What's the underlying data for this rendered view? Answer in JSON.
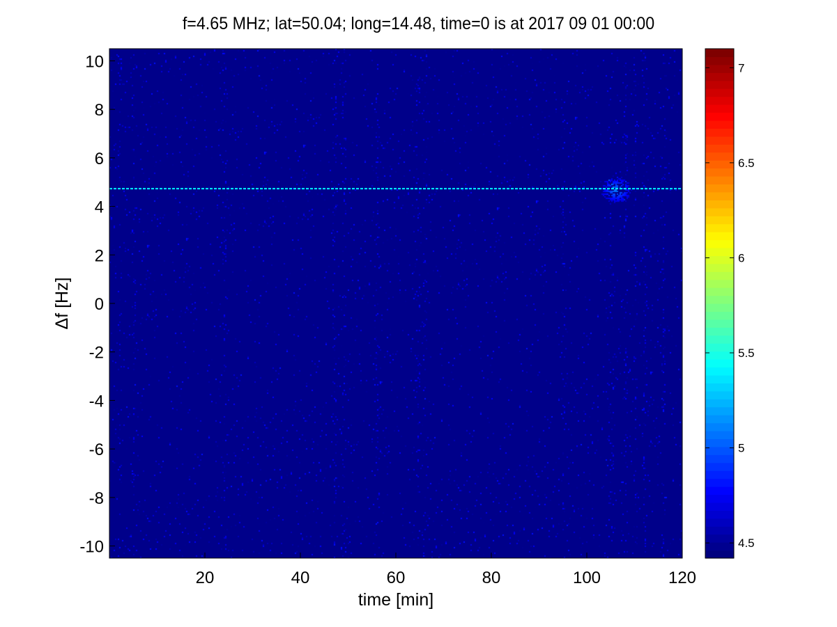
{
  "title": "f=4.65 MHz;  lat=50.04; long=14.48, time=0 is at 2017 09 01 00:00",
  "chart_data": {
    "type": "heatmap",
    "title": "f=4.65 MHz;  lat=50.04; long=14.48, time=0 is at 2017 09 01 00:00",
    "xlabel": "time [min]",
    "ylabel": "Δf [Hz]",
    "xlim": [
      0,
      120
    ],
    "ylim": [
      -10.5,
      10.5
    ],
    "xticks": [
      20,
      40,
      60,
      80,
      100,
      120
    ],
    "yticks": [
      10,
      8,
      6,
      4,
      2,
      0,
      -2,
      -4,
      -6,
      -8,
      -10
    ],
    "colormap": "jet",
    "clim": [
      4.42,
      7.1
    ],
    "colorbar_ticks": [
      4.5,
      5,
      5.5,
      6,
      6.5,
      7
    ],
    "background_level": 4.45,
    "features": {
      "horizontal_line": {
        "df_hz": 4.73,
        "level": 5.4
      },
      "blob": {
        "time_min": 106,
        "df_hz": 4.7,
        "level": 5.0
      },
      "vertical_stripes_min": [
        2,
        5,
        24,
        47,
        49,
        56,
        64.5,
        66,
        95,
        105,
        108,
        110,
        112,
        116
      ]
    }
  }
}
